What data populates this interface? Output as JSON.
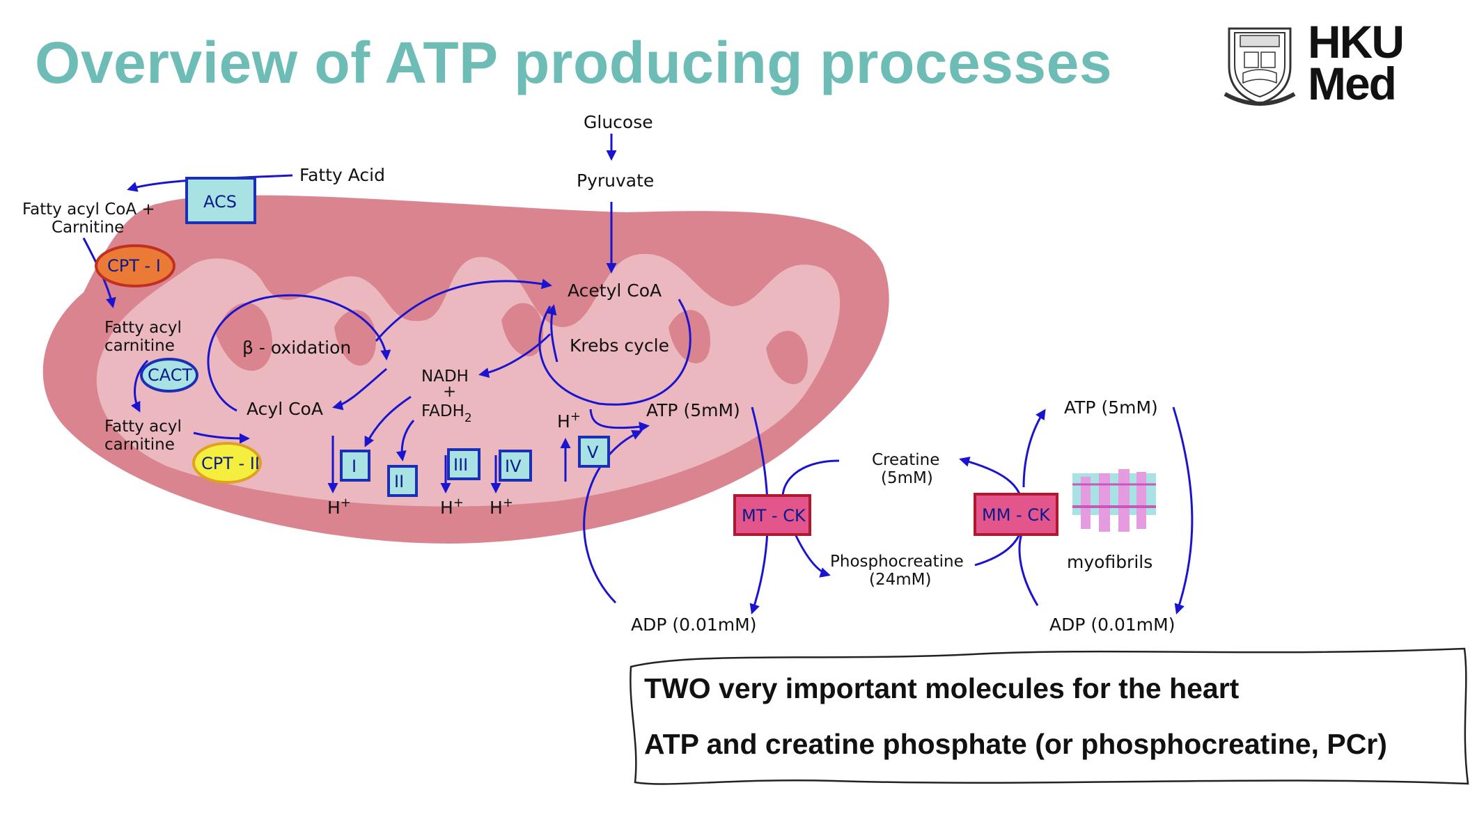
{
  "title": "Overview of ATP producing processes",
  "logo": {
    "line1": "HKU",
    "line2": "Med"
  },
  "diagram": {
    "glucose": "Glucose",
    "pyruvate": "Pyruvate",
    "fatty_acid": "Fatty Acid",
    "acs": "ACS",
    "fatty_acyl_coa_1": "Fatty acyl CoA +",
    "fatty_acyl_coa_2": "Carnitine",
    "cpt1": "CPT - I",
    "fatty_acyl_carnitine_1": "Fatty acyl",
    "fatty_acyl_carnitine_2": "carnitine",
    "cact": "CACT",
    "fatty_acyl_carnitine_b1": "Fatty acyl",
    "fatty_acyl_carnitine_b2": "carnitine",
    "cpt2": "CPT - II",
    "beta_oxidation": "β - oxidation",
    "acyl_coa": "Acyl CoA",
    "acetyl_coa": "Acetyl CoA",
    "krebs_cycle": "Krebs cycle",
    "nadh": "NADH",
    "plus": "+",
    "fadh2": "FADH",
    "fadh2_sub": "2",
    "complex_i": "I",
    "complex_ii": "II",
    "complex_iii": "III",
    "complex_iv": "IV",
    "complex_v": "V",
    "h_plus": "H",
    "h_plus_sup": "+",
    "atp_mito": "ATP (5mM)",
    "adp_mito": "ADP (0.01mM)",
    "mt_ck": "MT - CK",
    "creatine_1": "Creatine",
    "creatine_2": "(5mM)",
    "phosphocreatine_1": "Phosphocreatine",
    "phosphocreatine_2": "(24mM)",
    "mm_ck": "MM - CK",
    "atp_cyto": "ATP (5mM)",
    "adp_cyto": "ADP (0.01mM)",
    "myofibrils": "myofibrils"
  },
  "note": {
    "line1": "TWO very important molecules for the heart",
    "line2": "ATP and creatine phosphate (or phosphocreatine, PCr)"
  },
  "colors": {
    "title": "#6dbdb6",
    "mito_outer": "#d9848e",
    "mito_inner": "#ebb8bf",
    "arrow": "#1a13cf",
    "complex_fill": "#a8e2e2",
    "ck_fill": "#e2568b",
    "cpt1_fill": "#ea7a36",
    "cpt2_fill": "#f4ef3e"
  }
}
